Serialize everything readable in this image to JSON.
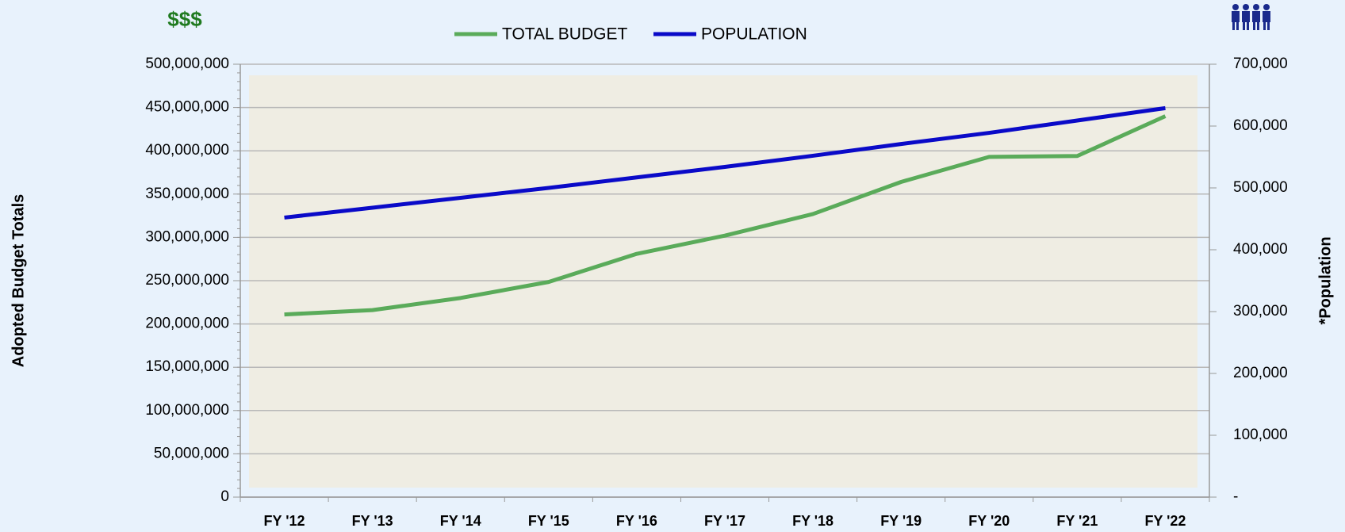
{
  "chart_data": {
    "type": "line",
    "y_label": "Adopted Budget Totals",
    "y2_label": "*Population",
    "y_unit_label": "$$$",
    "categories": [
      "FY '12",
      "FY '13",
      "FY '14",
      "FY '15",
      "FY '16",
      "FY '17",
      "FY '18",
      "FY '19",
      "FY '20",
      "FY '21",
      "FY '22"
    ],
    "series": [
      {
        "name": "TOTAL BUDGET",
        "color": "#5aab5a",
        "values": [
          211000000,
          216000000,
          230000000,
          248500000,
          281000000,
          302000000,
          327000000,
          364000000,
          393000000,
          394000000,
          440000000
        ]
      },
      {
        "name": "POPULATION",
        "color": "#0a0ac8",
        "axis": "y2",
        "values": [
          452000,
          468000,
          484000,
          500000,
          517000,
          534000,
          552000,
          571000,
          589000,
          609000,
          629000
        ]
      }
    ],
    "ylim": [
      0,
      500000000
    ],
    "yticks": [
      0,
      {
        "value": 50000000,
        "label": "50,000,000"
      },
      {
        "value": 100000000,
        "label": "100,000,000"
      },
      {
        "value": 150000000,
        "label": "150,000,000"
      },
      {
        "value": 200000000,
        "label": "200,000,000"
      },
      {
        "value": 250000000,
        "label": "250,000,000"
      },
      {
        "value": 300000000,
        "label": "300,000,000"
      },
      {
        "value": 350000000,
        "label": "350,000,000"
      },
      {
        "value": 400000000,
        "label": "400,000,000"
      },
      {
        "value": 450000000,
        "label": "450,000,000"
      },
      {
        "value": 500000000,
        "label": "500,000,000"
      }
    ],
    "y2lim": [
      0,
      700000
    ],
    "y2ticks": [
      {
        "value": 0,
        "label": "-"
      },
      {
        "value": 100000,
        "label": "100,000"
      },
      {
        "value": 200000,
        "label": "200,000"
      },
      {
        "value": 300000,
        "label": "300,000"
      },
      {
        "value": 400000,
        "label": "400,000"
      },
      {
        "value": 500000,
        "label": "500,000"
      },
      {
        "value": 600000,
        "label": "600,000"
      },
      {
        "value": 700000,
        "label": "700,000"
      }
    ],
    "grid": true,
    "legend": "top"
  }
}
